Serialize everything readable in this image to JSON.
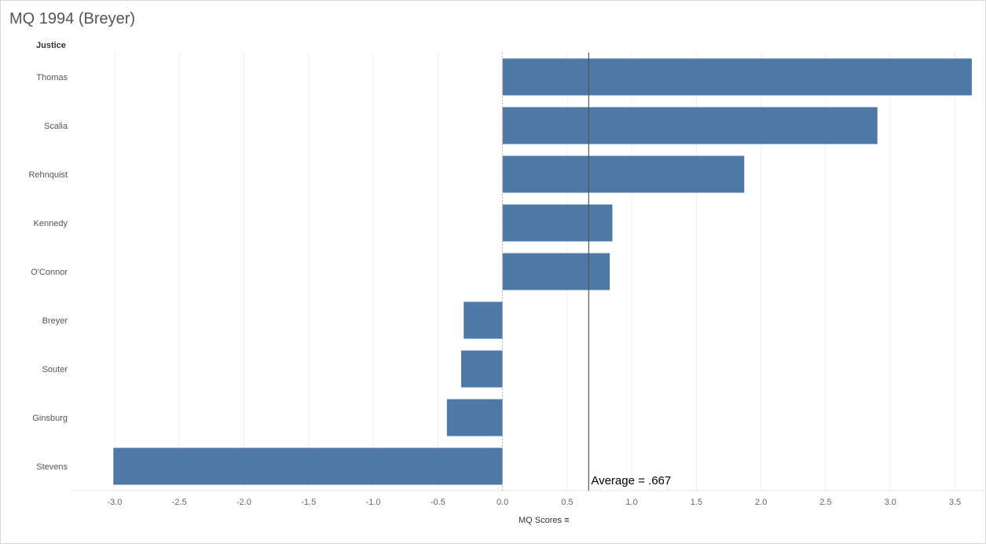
{
  "chart_data": {
    "type": "bar",
    "orientation": "horizontal",
    "title": "MQ 1994 (Breyer)",
    "ylabel": "Justice",
    "xlabel": "MQ Scores",
    "categories": [
      "Thomas",
      "Scalia",
      "Rehnquist",
      "Kennedy",
      "O'Connor",
      "Breyer",
      "Souter",
      "Ginsburg",
      "Stevens"
    ],
    "values": [
      3.63,
      2.9,
      1.87,
      0.85,
      0.83,
      -0.3,
      -0.32,
      -0.43,
      -3.01
    ],
    "xlim": [
      -3.34,
      3.74
    ],
    "xticks": [
      "-3.0",
      "-2.5",
      "-2.0",
      "-1.5",
      "-1.0",
      "-0.5",
      "0.0",
      "0.5",
      "1.0",
      "1.5",
      "2.0",
      "2.5",
      "3.0",
      "3.5"
    ],
    "reference_line": {
      "value": 0.667,
      "label": "Average = .667"
    },
    "bar_color": "#4e79a7",
    "grid": true
  }
}
